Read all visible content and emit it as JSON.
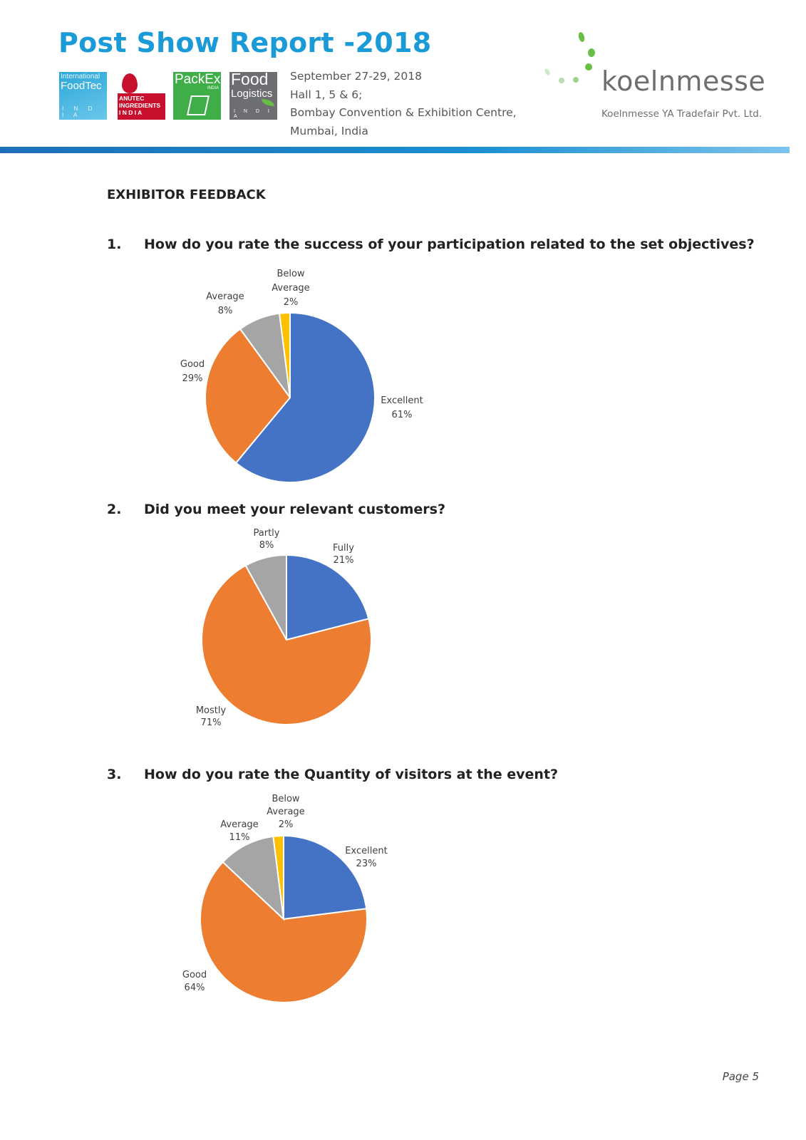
{
  "header": {
    "title": "Post Show Report -2018",
    "logos": [
      {
        "name": "foodtec-logo",
        "lines": [
          "International",
          "FoodTec",
          "I N D I A"
        ]
      },
      {
        "name": "anutec-logo",
        "lines": [
          "ANUTEC",
          "INGREDIENTS",
          "I N D I A"
        ]
      },
      {
        "name": "packex-logo",
        "lines": [
          "PackEx",
          "INDIA"
        ]
      },
      {
        "name": "food-logistics-logo",
        "lines": [
          "Food",
          "Logistics",
          "I N D I A"
        ]
      }
    ],
    "event_info": [
      "September 27-29, 2018",
      "Hall 1, 5 & 6;",
      "Bombay Convention & Exhibition Centre,",
      "Mumbai, India"
    ],
    "brand_name": "koelnmesse",
    "brand_sub": "Koelnmesse YA Tradefair Pvt. Ltd.",
    "colors": {
      "title": "#1a9ad6",
      "rule": "#1a8fd1",
      "brand_dots": "#7dc242"
    }
  },
  "section_title": "EXHIBITOR FEEDBACK",
  "questions": [
    {
      "number": "1.",
      "text": "How do you rate the success of your participation related to the set objectives?"
    },
    {
      "number": "2.",
      "text": "Did you meet your relevant customers?"
    },
    {
      "number": "3.",
      "text": "How do you rate the Quantity of visitors at the event?"
    }
  ],
  "chart_data": [
    {
      "type": "pie",
      "title": "",
      "start_angle_deg": 0,
      "direction": "clockwise",
      "slices": [
        {
          "label": "Excellent",
          "value": 61,
          "value_label": "61%",
          "color": "#4472c4"
        },
        {
          "label": "Good",
          "value": 29,
          "value_label": "29%",
          "color": "#ed7d31"
        },
        {
          "label": "Average",
          "value": 8,
          "value_label": "8%",
          "color": "#a5a5a5"
        },
        {
          "label": "Below Average",
          "value": 2,
          "value_label": "2%",
          "color": "#ffc000"
        }
      ]
    },
    {
      "type": "pie",
      "title": "",
      "start_angle_deg": 0,
      "direction": "clockwise",
      "slices": [
        {
          "label": "Fully",
          "value": 21,
          "value_label": "21%",
          "color": "#4472c4"
        },
        {
          "label": "Mostly",
          "value": 71,
          "value_label": "71%",
          "color": "#ed7d31"
        },
        {
          "label": "Partly",
          "value": 8,
          "value_label": "8%",
          "color": "#a5a5a5"
        }
      ]
    },
    {
      "type": "pie",
      "title": "",
      "start_angle_deg": 0,
      "direction": "clockwise",
      "slices": [
        {
          "label": "Excellent",
          "value": 23,
          "value_label": "23%",
          "color": "#4472c4"
        },
        {
          "label": "Good",
          "value": 64,
          "value_label": "64%",
          "color": "#ed7d31"
        },
        {
          "label": "Average",
          "value": 11,
          "value_label": "11%",
          "color": "#a5a5a5"
        },
        {
          "label": "Below Average",
          "value": 2,
          "value_label": "2%",
          "color": "#ffc000"
        }
      ]
    }
  ],
  "footer": {
    "page_label": "Page  5"
  }
}
